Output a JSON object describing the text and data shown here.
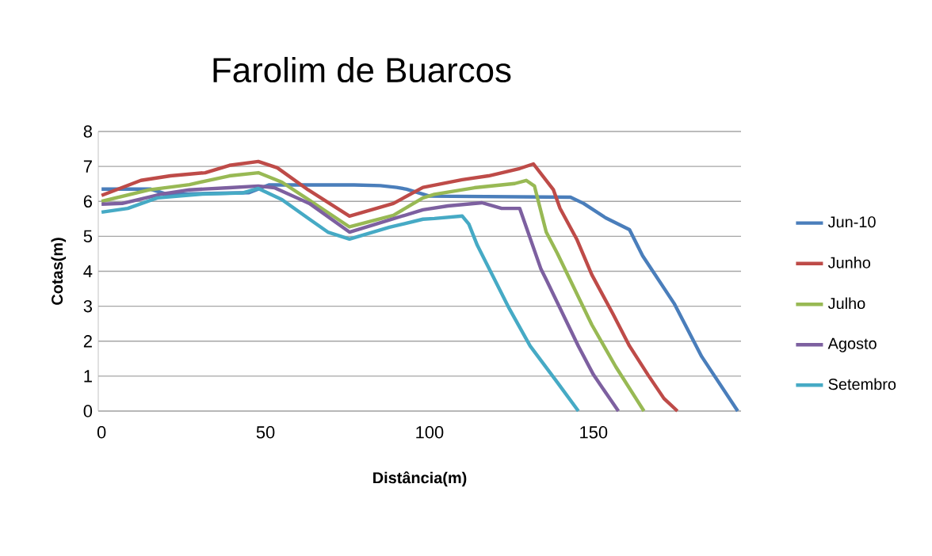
{
  "chart_data": {
    "type": "line",
    "title": "Farolim de Buarcos",
    "xlabel": "Distância(m)",
    "ylabel": "Cotas(m)",
    "xlim": [
      -1,
      195
    ],
    "ylim": [
      0,
      8
    ],
    "xticks": [
      0,
      50,
      100,
      150
    ],
    "yticks": [
      0,
      1,
      2,
      3,
      4,
      5,
      6,
      7,
      8
    ],
    "grid": "y",
    "legend": "right",
    "marker": "none",
    "line_style": "solid",
    "series": [
      {
        "name": "Jun-10",
        "color": "#4a7ebb",
        "x": [
          0,
          15,
          20,
          45,
          51,
          77,
          85,
          90,
          93,
          100,
          143,
          147,
          153.7,
          161,
          165,
          174.6,
          183,
          194
        ],
        "values": [
          6.35,
          6.35,
          6.2,
          6.25,
          6.47,
          6.47,
          6.45,
          6.4,
          6.35,
          6.15,
          6.12,
          5.94,
          5.53,
          5.19,
          4.44,
          3.08,
          1.56,
          0
        ]
      },
      {
        "name": "Junho",
        "color": "#be4b48",
        "x": [
          0,
          12,
          21,
          31.6,
          39,
          47.8,
          53.6,
          63,
          75.6,
          89,
          98,
          110,
          118,
          127.5,
          131.7,
          137.8,
          139.8,
          145,
          149.5,
          156,
          161,
          166.6,
          171.5,
          175.6
        ],
        "values": [
          6.17,
          6.6,
          6.73,
          6.82,
          7.03,
          7.14,
          6.96,
          6.33,
          5.58,
          5.94,
          6.4,
          6.62,
          6.73,
          6.94,
          7.07,
          6.33,
          5.8,
          4.9,
          3.9,
          2.77,
          1.86,
          1.04,
          0.36,
          0
        ]
      },
      {
        "name": "Julho",
        "color": "#98b954",
        "x": [
          0,
          14.6,
          26.8,
          39,
          47.8,
          55,
          63.4,
          75.6,
          89,
          98,
          101.5,
          113.7,
          126,
          129.5,
          132,
          135.6,
          139,
          149.5,
          156.8,
          165.4
        ],
        "values": [
          6.0,
          6.33,
          6.48,
          6.73,
          6.82,
          6.55,
          6.03,
          5.27,
          5.6,
          6.1,
          6.2,
          6.39,
          6.51,
          6.6,
          6.44,
          5.12,
          4.51,
          2.47,
          1.27,
          0
        ]
      },
      {
        "name": "Agosto",
        "color": "#7d60a0",
        "x": [
          0,
          6.3,
          18.5,
          26.8,
          39,
          47.8,
          52.7,
          63.4,
          75.6,
          83.7,
          98,
          105.6,
          116,
          122,
          127.5,
          134,
          135.6,
          145.4,
          150,
          157.6
        ],
        "values": [
          5.92,
          5.94,
          6.21,
          6.33,
          6.39,
          6.44,
          6.39,
          5.94,
          5.12,
          5.35,
          5.76,
          5.87,
          5.96,
          5.8,
          5.8,
          4.06,
          3.76,
          1.86,
          1.04,
          0
        ]
      },
      {
        "name": "Setembro",
        "color": "#46aac5",
        "x": [
          0,
          8,
          17,
          30.7,
          43,
          47.8,
          55,
          63.4,
          69,
          75.6,
          87.8,
          98,
          101.5,
          110,
          112,
          114.6,
          124.4,
          130.7,
          139,
          145.4
        ],
        "values": [
          5.69,
          5.8,
          6.1,
          6.21,
          6.24,
          6.37,
          6.05,
          5.49,
          5.12,
          4.92,
          5.26,
          5.49,
          5.51,
          5.58,
          5.35,
          4.74,
          2.92,
          1.86,
          0.82,
          0
        ]
      }
    ]
  }
}
